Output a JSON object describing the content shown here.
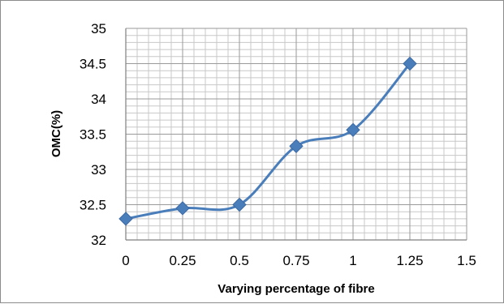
{
  "chart_data": {
    "type": "line",
    "title": "",
    "xlabel": "Varying percentage of fibre",
    "ylabel": "OMC(%)",
    "xlim": [
      0,
      1.5
    ],
    "ylim": [
      32,
      35
    ],
    "x_ticks": [
      "0",
      "0.25",
      "0.5",
      "0.75",
      "1",
      "1.25",
      "1.5"
    ],
    "y_ticks": [
      "32",
      "32.5",
      "33",
      "33.5",
      "34",
      "34.5",
      "35"
    ],
    "x_minor_step": 0.05,
    "y_minor_step": 0.1,
    "grid": true,
    "legend": "none",
    "smooth": true,
    "marker": "diamond",
    "series": [
      {
        "color": "#4a7ebb",
        "x": [
          0,
          0.25,
          0.5,
          0.75,
          1,
          1.25
        ],
        "y": [
          32.3,
          32.45,
          32.5,
          33.33,
          33.56,
          34.5
        ]
      }
    ]
  }
}
